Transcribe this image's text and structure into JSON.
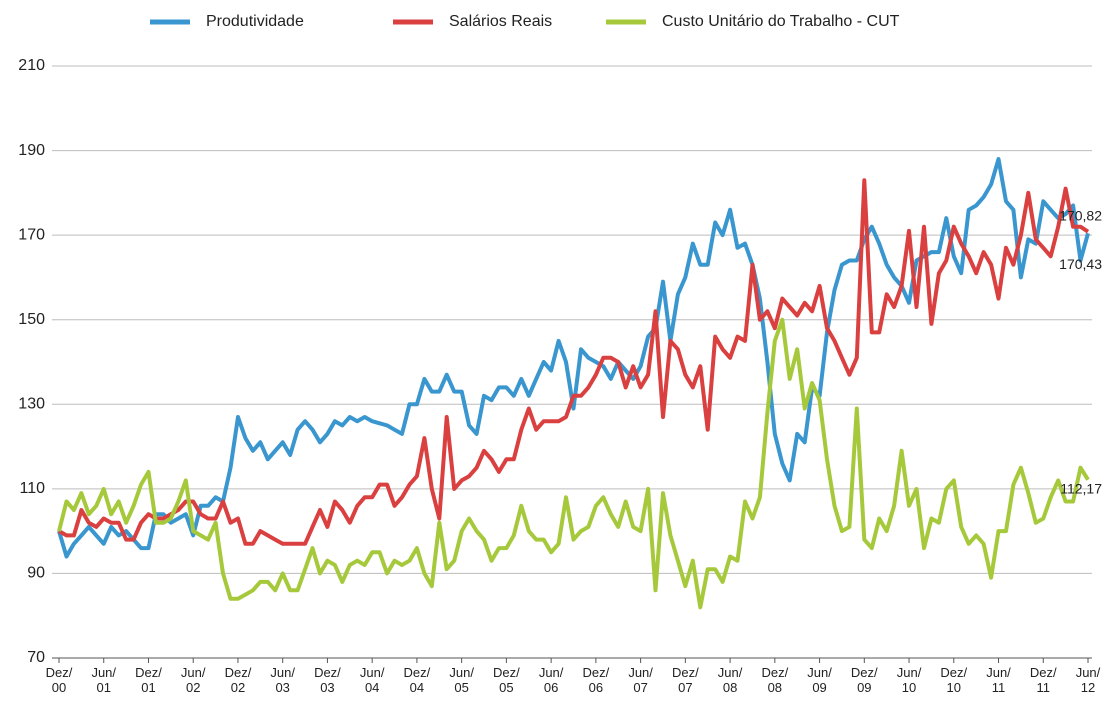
{
  "chart_data": {
    "type": "line",
    "categories": [
      "Dez/00",
      null,
      null,
      null,
      null,
      null,
      "Jun/01",
      null,
      null,
      null,
      null,
      null,
      "Dez/01",
      null,
      null,
      null,
      null,
      null,
      "Jun/02",
      null,
      null,
      null,
      null,
      null,
      "Dez/02",
      null,
      null,
      null,
      null,
      null,
      "Jun/03",
      null,
      null,
      null,
      null,
      null,
      "Dez/03",
      null,
      null,
      null,
      null,
      null,
      "Jun/04",
      null,
      null,
      null,
      null,
      null,
      "Dez/04",
      null,
      null,
      null,
      null,
      null,
      "Jun/05",
      null,
      null,
      null,
      null,
      null,
      "Dez/05",
      null,
      null,
      null,
      null,
      null,
      "Jun/06",
      null,
      null,
      null,
      null,
      null,
      "Dez/06",
      null,
      null,
      null,
      null,
      null,
      "Jun/07",
      null,
      null,
      null,
      null,
      null,
      "Dez/07",
      null,
      null,
      null,
      null,
      null,
      "Jun/08",
      null,
      null,
      null,
      null,
      null,
      "Dez/08",
      null,
      null,
      null,
      null,
      null,
      "Jun/09",
      null,
      null,
      null,
      null,
      null,
      "Dez/09",
      null,
      null,
      null,
      null,
      null,
      "Jun/10",
      null,
      null,
      null,
      null,
      null,
      "Dez/10",
      null,
      null,
      null,
      null,
      null,
      "Jun/11",
      null,
      null,
      null,
      null,
      null,
      "Dez/11",
      null,
      null,
      null,
      null,
      null,
      "Jun/12"
    ],
    "series": [
      {
        "name": "Produtividade",
        "color": "#3a96cf",
        "values": [
          100,
          94,
          97,
          99,
          101,
          99,
          97,
          101,
          99,
          100,
          98,
          96,
          96,
          104,
          104,
          102,
          103,
          104,
          99,
          106,
          106,
          108,
          107,
          115,
          127,
          122,
          119,
          121,
          117,
          119,
          121,
          118,
          124,
          126,
          124,
          121,
          123,
          126,
          125,
          127,
          126,
          127,
          126,
          125.5,
          125,
          124,
          123,
          130,
          130,
          136,
          133,
          133,
          137,
          133,
          133,
          125,
          123,
          132,
          131,
          134,
          134,
          132,
          136,
          132,
          136,
          140,
          138,
          145,
          140,
          129,
          143,
          141,
          140,
          139,
          136,
          140,
          138,
          136,
          139,
          146,
          148,
          159,
          145,
          156,
          160,
          168,
          163,
          163,
          173,
          170,
          176,
          167,
          168,
          163,
          155,
          140,
          123,
          116,
          112,
          123,
          121,
          134,
          132,
          147,
          157,
          163,
          164,
          164,
          169,
          172,
          168,
          163,
          160,
          158,
          154,
          164,
          165,
          166,
          166,
          174,
          165,
          161,
          176,
          177,
          179,
          182,
          188,
          178,
          176,
          160,
          169,
          168,
          178,
          176,
          174,
          175,
          177,
          164,
          170.43
        ],
        "value_labels": [
          null,
          null,
          null,
          null,
          null,
          null,
          null,
          null,
          null,
          null,
          null,
          null,
          null,
          null,
          null,
          null,
          null,
          null,
          null,
          null,
          null,
          null,
          null,
          null,
          null,
          null,
          null,
          null,
          null,
          null,
          null,
          null,
          null,
          null,
          null,
          null,
          null,
          null,
          null,
          null,
          null,
          null,
          null,
          null,
          null,
          null,
          null,
          null,
          null,
          null,
          null,
          null,
          null,
          null,
          null,
          null,
          null,
          null,
          null,
          null,
          null,
          null,
          null,
          null,
          null,
          null,
          null,
          null,
          null,
          null,
          null,
          null,
          null,
          null,
          null,
          null,
          null,
          null,
          null,
          null,
          null,
          null,
          null,
          null,
          null,
          null,
          null,
          null,
          null,
          null,
          null,
          null,
          null,
          null,
          null,
          null,
          null,
          null,
          null,
          null,
          null,
          null,
          null,
          null,
          null,
          null,
          null,
          null,
          null,
          null,
          null,
          null,
          null,
          null,
          null,
          null,
          null,
          null,
          null,
          null,
          null,
          null,
          null,
          null,
          null,
          null,
          null,
          null,
          null,
          null,
          null,
          null,
          null,
          null,
          null,
          null,
          null,
          null,
          "170,43"
        ]
      },
      {
        "name": "Salários Reais",
        "color": "#d9403f",
        "values": [
          100,
          99,
          99,
          105,
          102,
          101,
          103,
          102,
          102,
          98,
          98,
          102,
          104,
          103,
          103,
          104,
          105,
          107,
          107,
          104,
          103,
          103,
          107,
          102,
          103,
          97,
          97,
          100,
          99,
          98,
          97,
          97,
          97,
          97,
          101,
          105,
          101,
          107,
          105,
          102,
          106,
          108,
          108,
          111,
          111,
          106,
          108,
          111,
          113,
          122,
          110,
          103,
          127,
          110,
          112,
          113,
          115,
          119,
          117,
          114,
          117,
          117,
          124,
          129,
          124,
          126,
          126,
          126,
          127,
          132,
          132,
          134,
          137,
          141,
          141,
          140,
          134,
          139,
          134,
          137,
          152,
          127,
          145,
          143,
          137,
          134,
          139,
          124,
          146,
          143,
          141,
          146,
          145,
          163,
          150,
          152,
          148,
          155,
          153,
          151,
          154,
          152,
          158,
          148,
          145,
          141,
          137,
          141,
          183,
          147,
          147,
          156,
          153,
          158,
          171,
          153,
          172,
          149,
          161,
          164,
          172,
          168,
          165,
          161,
          166,
          163,
          155,
          167,
          163,
          170,
          180,
          169,
          167,
          165,
          172,
          181,
          172,
          172,
          170.82
        ],
        "value_labels": [
          null,
          null,
          null,
          null,
          null,
          null,
          null,
          null,
          null,
          null,
          null,
          null,
          null,
          null,
          null,
          null,
          null,
          null,
          null,
          null,
          null,
          null,
          null,
          null,
          null,
          null,
          null,
          null,
          null,
          null,
          null,
          null,
          null,
          null,
          null,
          null,
          null,
          null,
          null,
          null,
          null,
          null,
          null,
          null,
          null,
          null,
          null,
          null,
          null,
          null,
          null,
          null,
          null,
          null,
          null,
          null,
          null,
          null,
          null,
          null,
          null,
          null,
          null,
          null,
          null,
          null,
          null,
          null,
          null,
          null,
          null,
          null,
          null,
          null,
          null,
          null,
          null,
          null,
          null,
          null,
          null,
          null,
          null,
          null,
          null,
          null,
          null,
          null,
          null,
          null,
          null,
          null,
          null,
          null,
          null,
          null,
          null,
          null,
          null,
          null,
          null,
          null,
          null,
          null,
          null,
          null,
          null,
          null,
          null,
          null,
          null,
          null,
          null,
          null,
          null,
          null,
          null,
          null,
          null,
          null,
          null,
          null,
          null,
          null,
          null,
          null,
          null,
          null,
          null,
          null,
          null,
          null,
          null,
          null,
          null,
          null,
          null,
          null,
          "170,82"
        ]
      },
      {
        "name": "Custo Unitário do Trabalho - CUT",
        "color": "#a6c93c",
        "values": [
          100,
          107,
          105,
          109,
          104,
          106,
          110,
          104,
          107,
          102,
          106,
          111,
          114,
          102,
          102,
          103,
          107,
          112,
          100,
          99,
          98,
          102,
          90,
          84,
          84,
          85,
          86,
          88,
          88,
          86,
          90,
          86,
          86,
          91,
          96,
          90,
          93,
          92,
          88,
          92,
          93,
          92,
          95,
          95,
          90,
          93,
          92,
          93,
          96,
          90,
          87,
          102,
          91,
          93,
          100,
          103,
          100,
          98,
          93,
          96,
          96,
          99,
          106,
          100,
          98,
          98,
          95,
          97,
          108,
          98,
          100,
          101,
          106,
          108,
          104,
          101,
          107,
          101,
          100,
          110,
          86,
          109,
          99,
          93,
          87,
          93,
          82,
          91,
          91,
          88,
          94,
          93,
          107,
          103,
          108,
          128,
          145,
          150,
          136,
          143,
          129,
          135,
          131,
          117,
          106,
          100,
          101,
          129,
          98,
          96,
          103,
          100,
          106,
          119,
          106,
          110,
          96,
          103,
          102,
          110,
          112,
          101,
          97,
          99,
          97,
          89,
          100,
          100,
          111,
          115,
          109,
          102,
          103,
          108,
          112,
          107,
          107,
          115,
          112.17
        ],
        "value_labels": [
          null,
          null,
          null,
          null,
          null,
          null,
          null,
          null,
          null,
          null,
          null,
          null,
          null,
          null,
          null,
          null,
          null,
          null,
          null,
          null,
          null,
          null,
          null,
          null,
          null,
          null,
          null,
          null,
          null,
          null,
          null,
          null,
          null,
          null,
          null,
          null,
          null,
          null,
          null,
          null,
          null,
          null,
          null,
          null,
          null,
          null,
          null,
          null,
          null,
          null,
          null,
          null,
          null,
          null,
          null,
          null,
          null,
          null,
          null,
          null,
          null,
          null,
          null,
          null,
          null,
          null,
          null,
          null,
          null,
          null,
          null,
          null,
          null,
          null,
          null,
          null,
          null,
          null,
          null,
          null,
          null,
          null,
          null,
          null,
          null,
          null,
          null,
          null,
          null,
          null,
          null,
          null,
          null,
          null,
          null,
          null,
          null,
          null,
          null,
          null,
          null,
          null,
          null,
          null,
          null,
          null,
          null,
          null,
          null,
          null,
          null,
          null,
          null,
          null,
          null,
          null,
          null,
          null,
          null,
          null,
          null,
          null,
          null,
          null,
          null,
          null,
          null,
          null,
          null,
          null,
          null,
          null,
          null,
          null,
          null,
          null,
          null,
          null,
          "112,17"
        ]
      }
    ],
    "ylim": [
      70,
      210
    ],
    "yticks": [
      70,
      90,
      110,
      130,
      150,
      170,
      190,
      210
    ],
    "grid": true,
    "legend": "top"
  }
}
